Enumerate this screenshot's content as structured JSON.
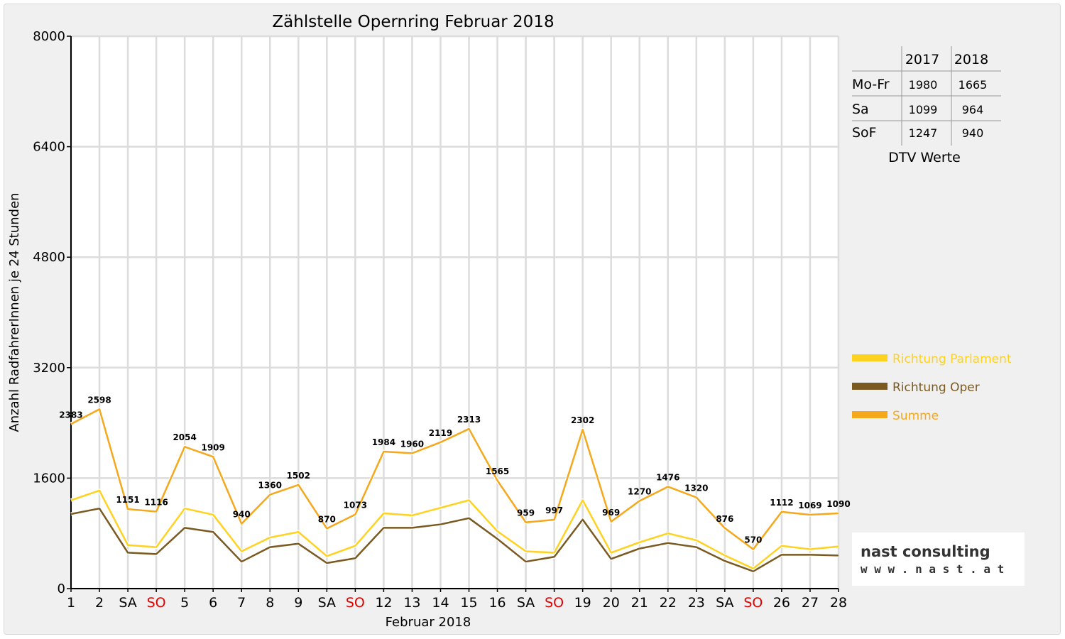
{
  "chart_data": {
    "type": "line",
    "title": "Zählstelle Opernring Februar 2018",
    "xlabel": "Februar 2018",
    "ylabel": "Anzahl RadfahrerInnen je 24 Stunden",
    "ylim": [
      0,
      8000
    ],
    "yticks": [
      "0",
      "1600",
      "3200",
      "4800",
      "6400",
      "8000"
    ],
    "grid": true,
    "legend_position": "right",
    "categories": [
      "1",
      "2",
      "SA",
      "SO",
      "5",
      "6",
      "7",
      "8",
      "9",
      "SA",
      "SO",
      "12",
      "13",
      "14",
      "15",
      "16",
      "SA",
      "SO",
      "19",
      "20",
      "21",
      "22",
      "23",
      "SA",
      "SO",
      "26",
      "27",
      "28"
    ],
    "red_categories": [
      3,
      10,
      17,
      24
    ],
    "series": [
      {
        "name": "Richtung Parlament",
        "color": "#ffd21f",
        "values": [
          1280,
          1420,
          630,
          600,
          1160,
          1070,
          540,
          740,
          820,
          470,
          620,
          1090,
          1060,
          1170,
          1280,
          830,
          540,
          520,
          1280,
          520,
          670,
          800,
          700,
          480,
          290,
          620,
          570,
          610
        ]
      },
      {
        "name": "Richtung Oper",
        "color": "#7a5a20",
        "values": [
          1080,
          1160,
          520,
          500,
          880,
          820,
          390,
          600,
          650,
          370,
          440,
          880,
          880,
          930,
          1020,
          720,
          390,
          460,
          1000,
          430,
          580,
          660,
          600,
          400,
          250,
          490,
          490,
          480
        ]
      },
      {
        "name": "Summe",
        "color": "#f5a81c",
        "values": [
          2383,
          2598,
          1151,
          1116,
          2054,
          1909,
          940,
          1360,
          1502,
          870,
          1073,
          1984,
          1960,
          2119,
          2313,
          1565,
          959,
          997,
          2302,
          969,
          1270,
          1476,
          1320,
          876,
          570,
          1112,
          1069,
          1090
        ]
      }
    ],
    "data_labels": [
      "2383",
      "2598",
      "1151",
      "1116",
      "2054",
      "1909",
      "940",
      "1360",
      "1502",
      "870",
      "1073",
      "1984",
      "1960",
      "2119",
      "2313",
      "1565",
      "959",
      "997",
      "2302",
      "969",
      "1270",
      "1476",
      "1320",
      "876",
      "570",
      "1112",
      "1069",
      "1090"
    ]
  },
  "dtv_table": {
    "headers": [
      "2017",
      "2018"
    ],
    "rows": [
      {
        "label": "Mo-Fr",
        "v2017": "1980",
        "v2018": "1665"
      },
      {
        "label": "Sa",
        "v2017": "1099",
        "v2018": "964"
      },
      {
        "label": "SoF",
        "v2017": "1247",
        "v2018": "940"
      }
    ],
    "caption": "DTV Werte"
  },
  "logo": {
    "line1": "nast consulting",
    "line2": "w w w . n a s t . a t"
  }
}
